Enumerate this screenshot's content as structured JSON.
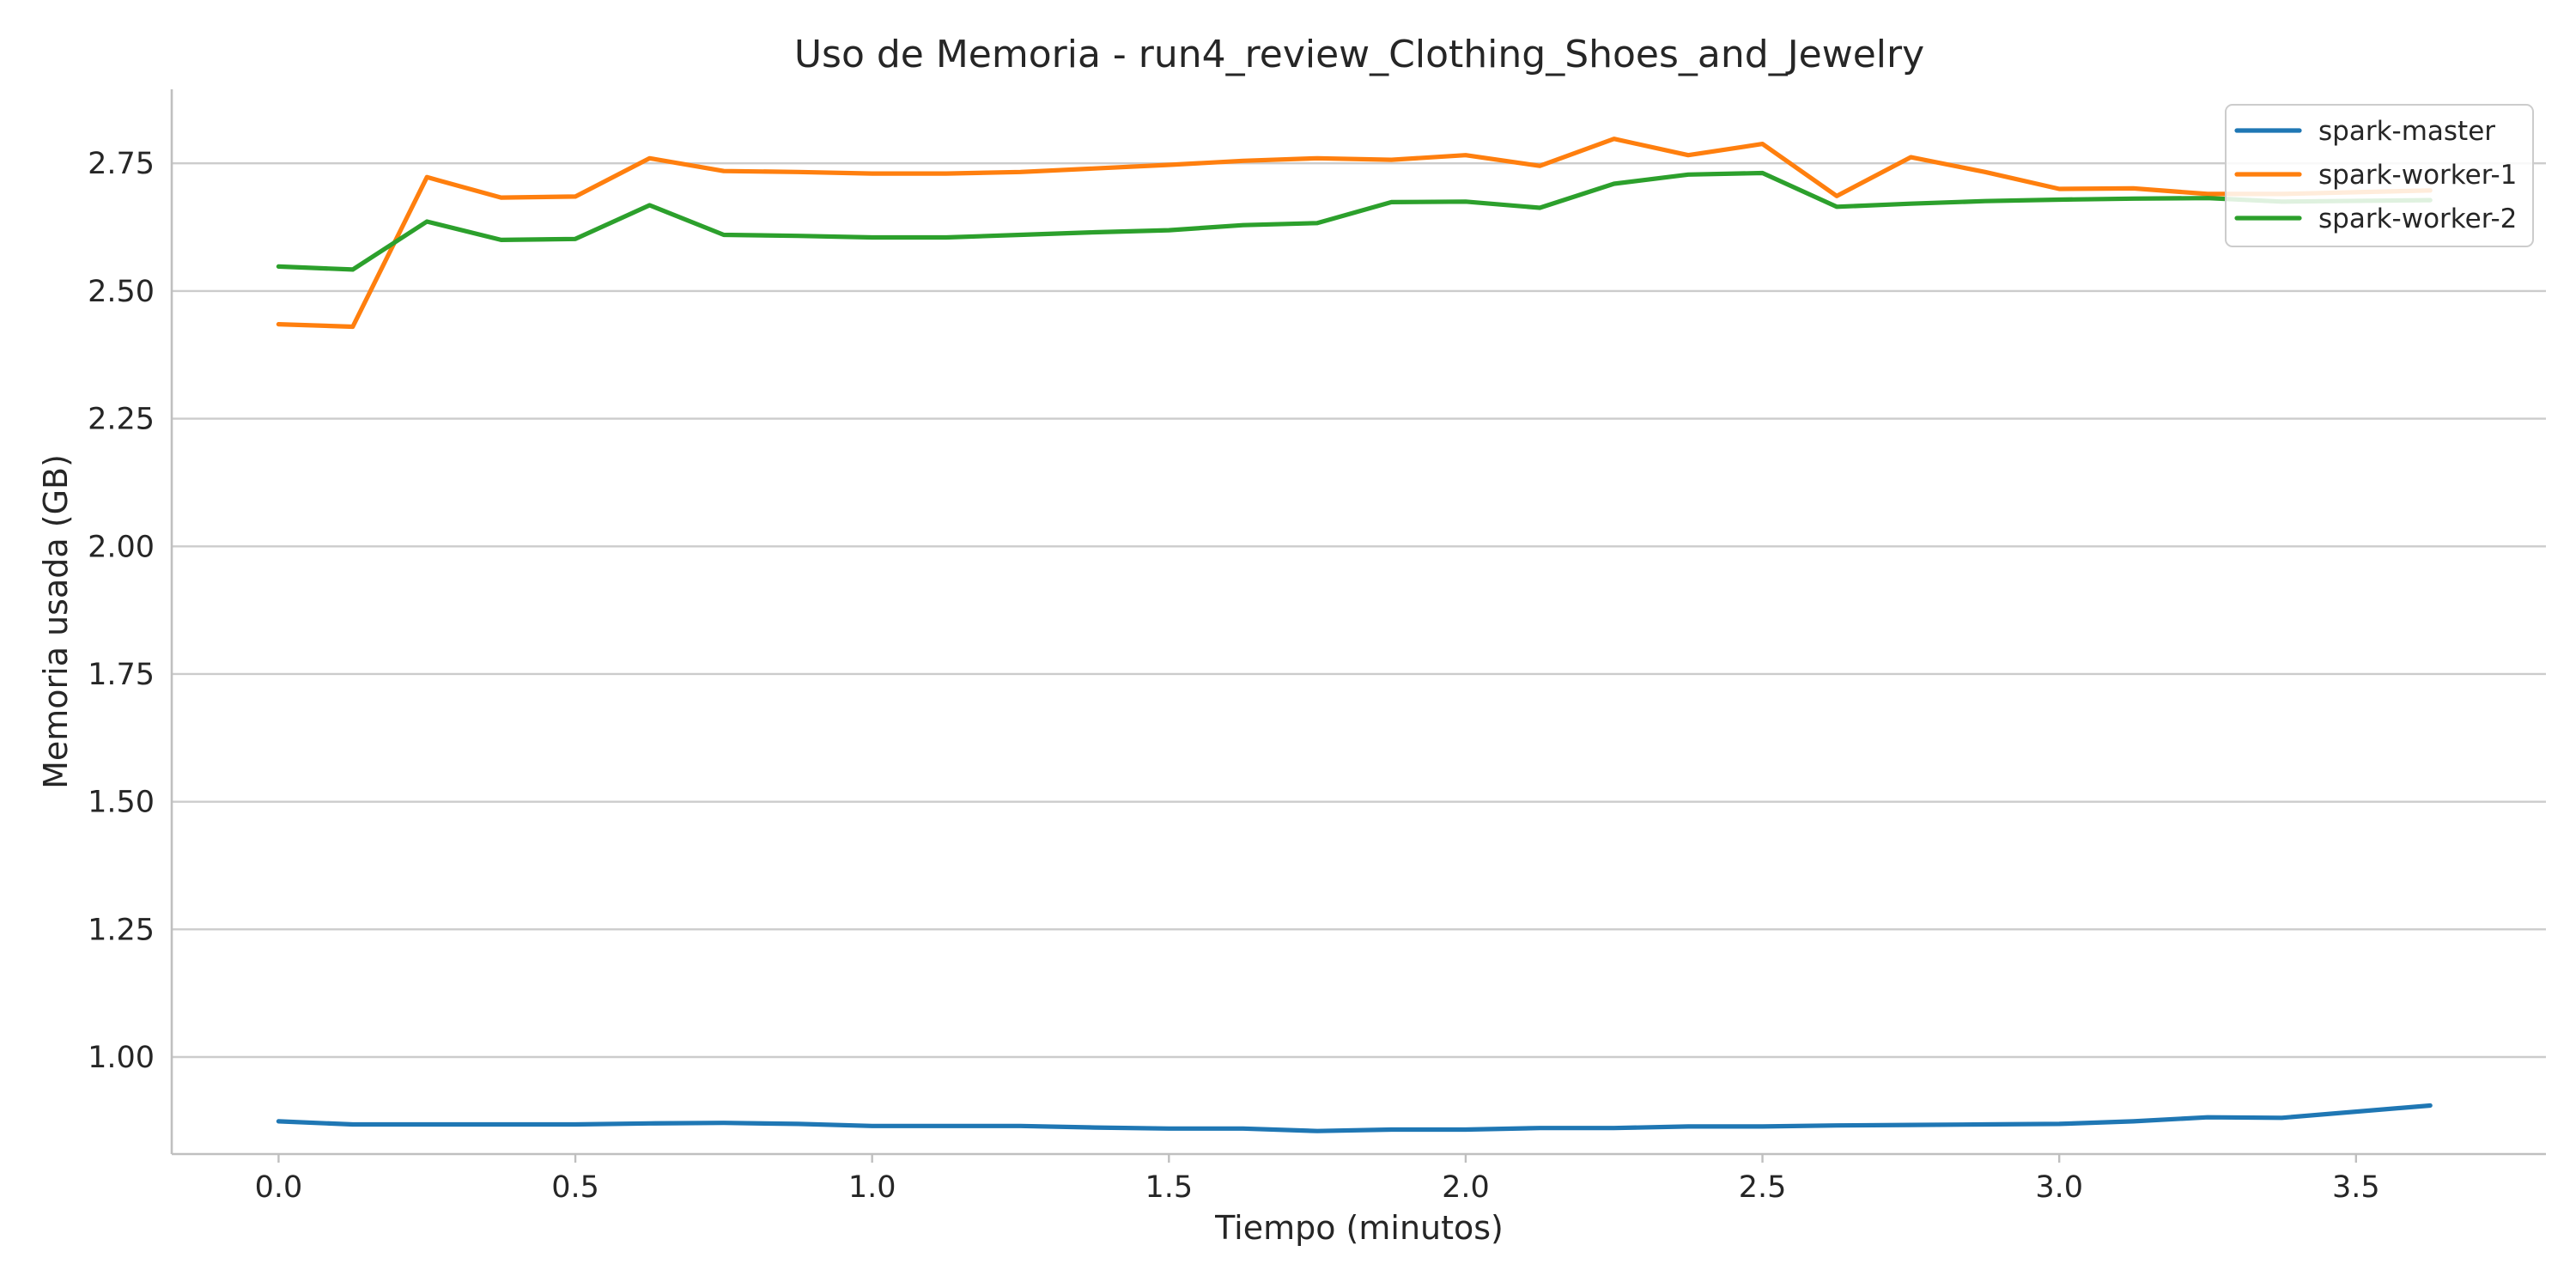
{
  "chart_data": {
    "type": "line",
    "title": "Uso de Memoria - run4_review_Clothing_Shoes_and_Jewelry",
    "xlabel": "Tiempo (minutos)",
    "ylabel": "Memoria usada (GB)",
    "xlim": [
      -0.18,
      3.82
    ],
    "ylim": [
      0.81,
      2.895
    ],
    "x_ticks": [
      0.0,
      0.5,
      1.0,
      1.5,
      2.0,
      2.5,
      3.0,
      3.5
    ],
    "x_tick_labels": [
      "0.0",
      "0.5",
      "1.0",
      "1.5",
      "2.0",
      "2.5",
      "3.0",
      "3.5"
    ],
    "y_ticks": [
      1.0,
      1.25,
      1.5,
      1.75,
      2.0,
      2.25,
      2.5,
      2.75
    ],
    "y_tick_labels": [
      "1.00",
      "1.25",
      "1.50",
      "1.75",
      "2.00",
      "2.25",
      "2.50",
      "2.75"
    ],
    "grid": "horizontal",
    "legend_position": "top-right",
    "x": [
      0.0,
      0.125,
      0.25,
      0.375,
      0.5,
      0.625,
      0.75,
      0.875,
      1.0,
      1.125,
      1.25,
      1.375,
      1.5,
      1.625,
      1.75,
      1.875,
      2.0,
      2.125,
      2.25,
      2.375,
      2.5,
      2.625,
      2.75,
      2.875,
      3.0,
      3.125,
      3.25,
      3.375,
      3.625
    ],
    "series": [
      {
        "name": "spark-master",
        "color": "#1f77b4",
        "values": [
          0.874,
          0.868,
          0.868,
          0.868,
          0.868,
          0.87,
          0.871,
          0.869,
          0.865,
          0.865,
          0.865,
          0.862,
          0.86,
          0.86,
          0.855,
          0.858,
          0.858,
          0.861,
          0.861,
          0.864,
          0.864,
          0.866,
          0.867,
          0.868,
          0.869,
          0.874,
          0.882,
          0.881,
          0.905
        ]
      },
      {
        "name": "spark-worker-1",
        "color": "#ff7f0e",
        "values": [
          2.435,
          2.43,
          2.723,
          2.683,
          2.685,
          2.76,
          2.735,
          2.733,
          2.73,
          2.73,
          2.733,
          2.74,
          2.747,
          2.755,
          2.76,
          2.757,
          2.766,
          2.745,
          2.798,
          2.766,
          2.788,
          2.686,
          2.762,
          2.733,
          2.7,
          2.701,
          2.69,
          2.69,
          2.697
        ]
      },
      {
        "name": "spark-worker-2",
        "color": "#2ca02c",
        "values": [
          2.548,
          2.542,
          2.636,
          2.6,
          2.602,
          2.668,
          2.61,
          2.608,
          2.605,
          2.605,
          2.61,
          2.615,
          2.619,
          2.629,
          2.633,
          2.674,
          2.675,
          2.663,
          2.71,
          2.728,
          2.731,
          2.665,
          2.671,
          2.676,
          2.679,
          2.681,
          2.682,
          2.675,
          2.678
        ]
      }
    ]
  }
}
